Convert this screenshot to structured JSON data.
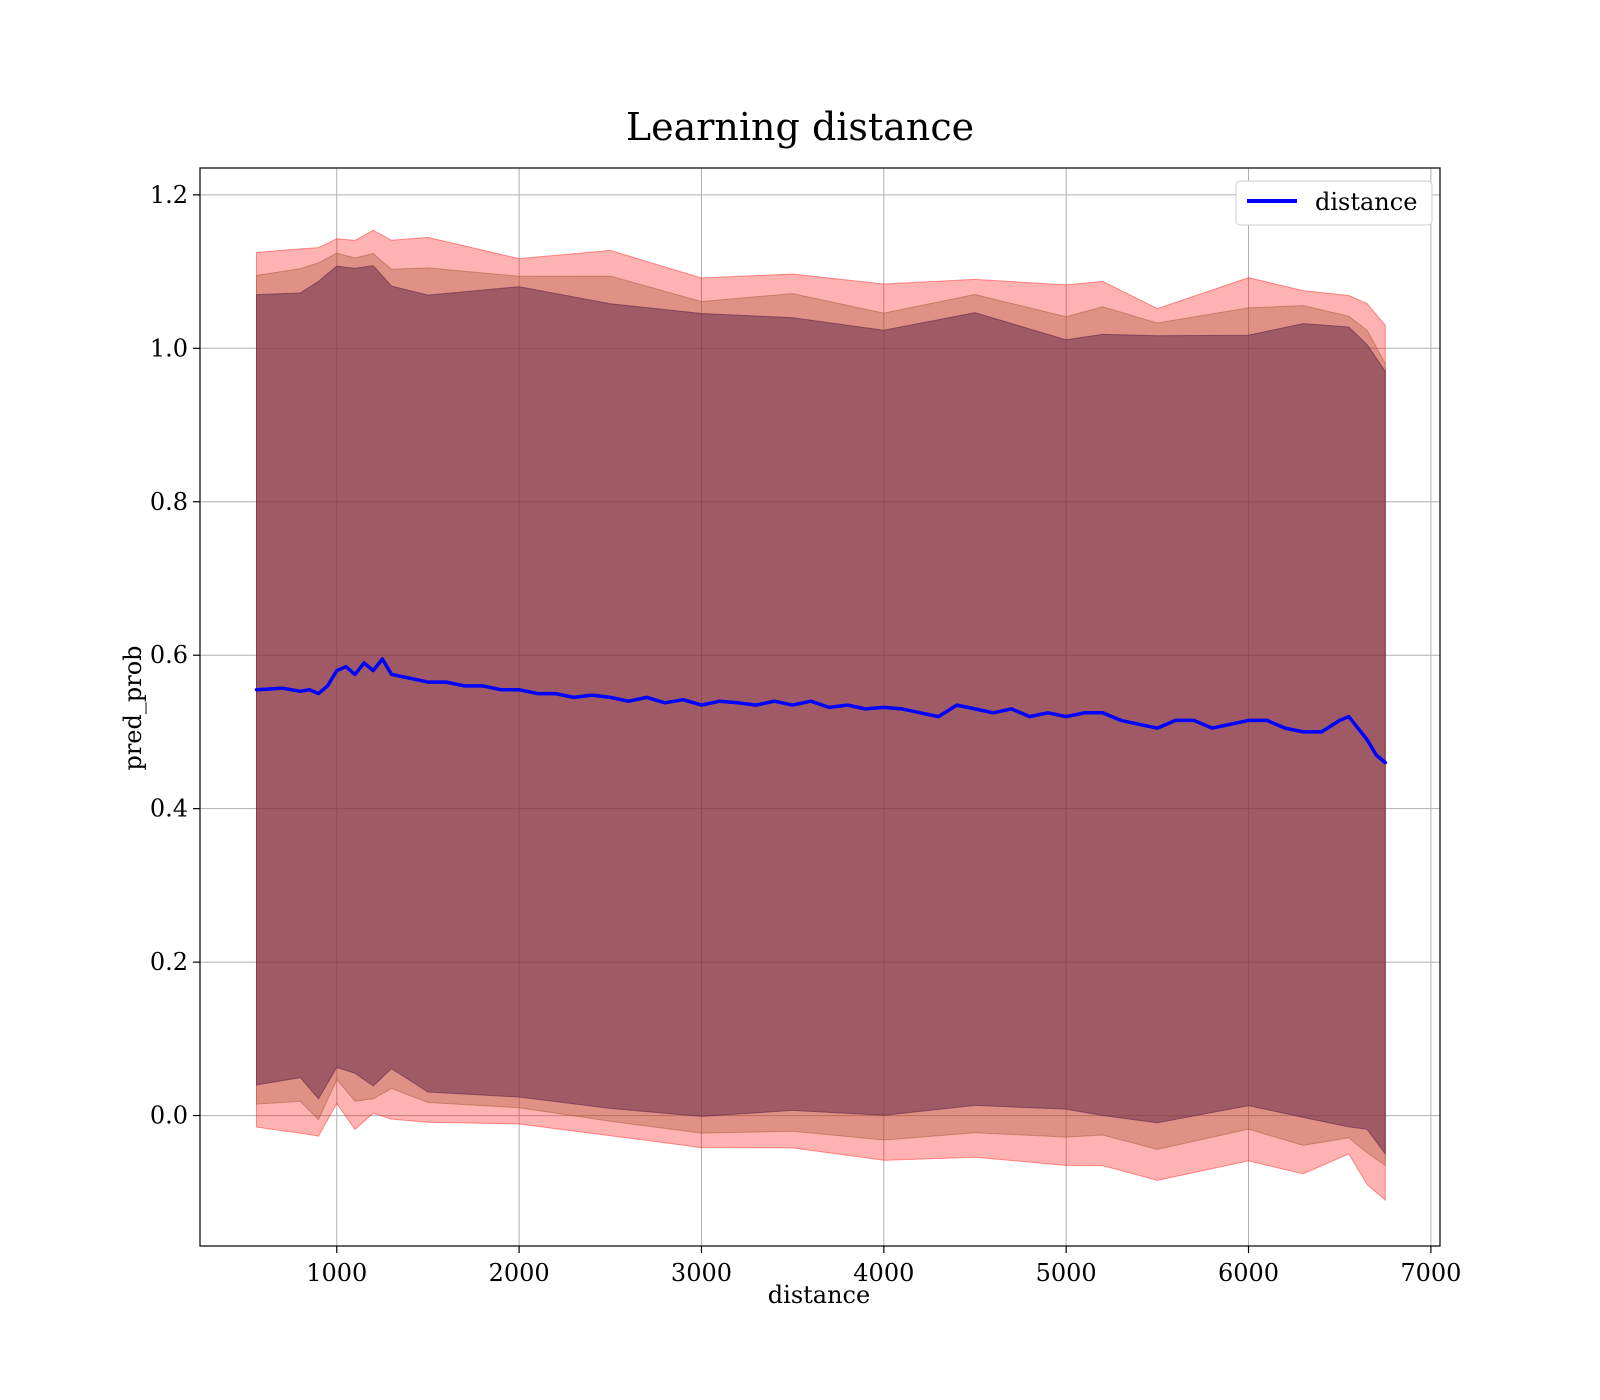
{
  "chart_data": {
    "type": "line",
    "title": "Learning distance",
    "xlabel": "distance",
    "ylabel": "pred_prob",
    "xlim": [
      250,
      7050
    ],
    "ylim": [
      -0.17,
      1.235
    ],
    "x_ticks": [
      1000,
      2000,
      3000,
      4000,
      5000,
      6000,
      7000
    ],
    "y_ticks": [
      0.0,
      0.2,
      0.4,
      0.6,
      0.8,
      1.0,
      1.2
    ],
    "grid": true,
    "legend": {
      "position": "top-right",
      "entries": [
        "distance"
      ]
    },
    "series": [
      {
        "name": "distance",
        "color": "#0000ff",
        "x": [
          560,
          700,
          800,
          850,
          900,
          950,
          1000,
          1050,
          1100,
          1150,
          1200,
          1250,
          1300,
          1400,
          1500,
          1600,
          1700,
          1800,
          1900,
          2000,
          2100,
          2200,
          2300,
          2400,
          2500,
          2600,
          2700,
          2800,
          2900,
          3000,
          3100,
          3200,
          3300,
          3400,
          3500,
          3600,
          3700,
          3800,
          3900,
          4000,
          4100,
          4200,
          4300,
          4400,
          4500,
          4600,
          4700,
          4800,
          4900,
          5000,
          5100,
          5200,
          5300,
          5400,
          5500,
          5600,
          5700,
          5800,
          5900,
          6000,
          6100,
          6200,
          6300,
          6400,
          6500,
          6550,
          6600,
          6650,
          6700,
          6750
        ],
        "y": [
          0.555,
          0.557,
          0.553,
          0.555,
          0.55,
          0.56,
          0.58,
          0.585,
          0.575,
          0.59,
          0.58,
          0.595,
          0.575,
          0.57,
          0.565,
          0.565,
          0.56,
          0.56,
          0.555,
          0.555,
          0.55,
          0.55,
          0.545,
          0.548,
          0.545,
          0.54,
          0.545,
          0.538,
          0.542,
          0.535,
          0.54,
          0.538,
          0.535,
          0.54,
          0.535,
          0.54,
          0.532,
          0.535,
          0.53,
          0.532,
          0.53,
          0.525,
          0.52,
          0.535,
          0.53,
          0.525,
          0.53,
          0.52,
          0.525,
          0.52,
          0.525,
          0.525,
          0.515,
          0.51,
          0.505,
          0.515,
          0.515,
          0.505,
          0.51,
          0.515,
          0.515,
          0.505,
          0.5,
          0.5,
          0.515,
          0.52,
          0.505,
          0.49,
          0.47,
          0.46
        ]
      }
    ],
    "bands": [
      {
        "color": "#ff0000",
        "opacity": 0.3,
        "x": [
          560,
          800,
          900,
          1000,
          1100,
          1200,
          1300,
          1500,
          2000,
          2500,
          3000,
          3500,
          4000,
          4500,
          5000,
          5200,
          5500,
          6000,
          6300,
          6550,
          6650,
          6750
        ],
        "upper": [
          1.125,
          1.125,
          1.13,
          1.15,
          1.155,
          1.16,
          1.15,
          1.14,
          1.13,
          1.11,
          1.1,
          1.095,
          1.09,
          1.085,
          1.075,
          1.07,
          1.065,
          1.085,
          1.07,
          1.085,
          1.06,
          1.03
        ],
        "lower": [
          -0.015,
          -0.015,
          -0.02,
          0.0,
          -0.005,
          0.0,
          -0.01,
          -0.015,
          -0.025,
          -0.035,
          -0.04,
          -0.045,
          -0.045,
          -0.045,
          -0.055,
          -0.06,
          -0.07,
          -0.06,
          -0.07,
          -0.06,
          -0.08,
          -0.11
        ]
      },
      {
        "color": "#a0522d",
        "opacity": 0.35,
        "x": [
          560,
          800,
          900,
          1000,
          1100,
          1200,
          1300,
          1500,
          2000,
          2500,
          3000,
          3500,
          4000,
          4500,
          5000,
          5200,
          5500,
          6000,
          6300,
          6550,
          6650,
          6750
        ],
        "upper": [
          1.095,
          1.095,
          1.1,
          1.12,
          1.125,
          1.13,
          1.12,
          1.11,
          1.1,
          1.08,
          1.07,
          1.065,
          1.06,
          1.055,
          1.045,
          1.04,
          1.035,
          1.055,
          1.04,
          1.055,
          1.03,
          0.98
        ],
        "lower": [
          0.015,
          0.015,
          0.01,
          0.03,
          0.025,
          0.03,
          0.02,
          0.015,
          0.005,
          -0.005,
          -0.01,
          -0.015,
          -0.015,
          -0.015,
          -0.025,
          -0.03,
          -0.04,
          -0.03,
          -0.04,
          -0.03,
          -0.05,
          -0.065
        ]
      },
      {
        "color": "#6b2d4e",
        "opacity": 0.55,
        "x": [
          560,
          800,
          900,
          1000,
          1100,
          1200,
          1300,
          1500,
          2000,
          2500,
          3000,
          3500,
          4000,
          4500,
          5000,
          5200,
          5500,
          6000,
          6300,
          6550,
          6650,
          6750
        ],
        "upper": [
          1.07,
          1.07,
          1.075,
          1.095,
          1.1,
          1.105,
          1.095,
          1.085,
          1.075,
          1.055,
          1.045,
          1.04,
          1.035,
          1.03,
          1.02,
          1.015,
          1.01,
          1.03,
          1.015,
          1.03,
          1.005,
          0.97
        ],
        "lower": [
          0.04,
          0.04,
          0.035,
          0.055,
          0.05,
          0.055,
          0.045,
          0.04,
          0.03,
          0.02,
          0.015,
          0.01,
          0.01,
          0.01,
          0.0,
          -0.005,
          -0.015,
          -0.005,
          -0.015,
          -0.005,
          -0.025,
          -0.05
        ]
      }
    ]
  }
}
